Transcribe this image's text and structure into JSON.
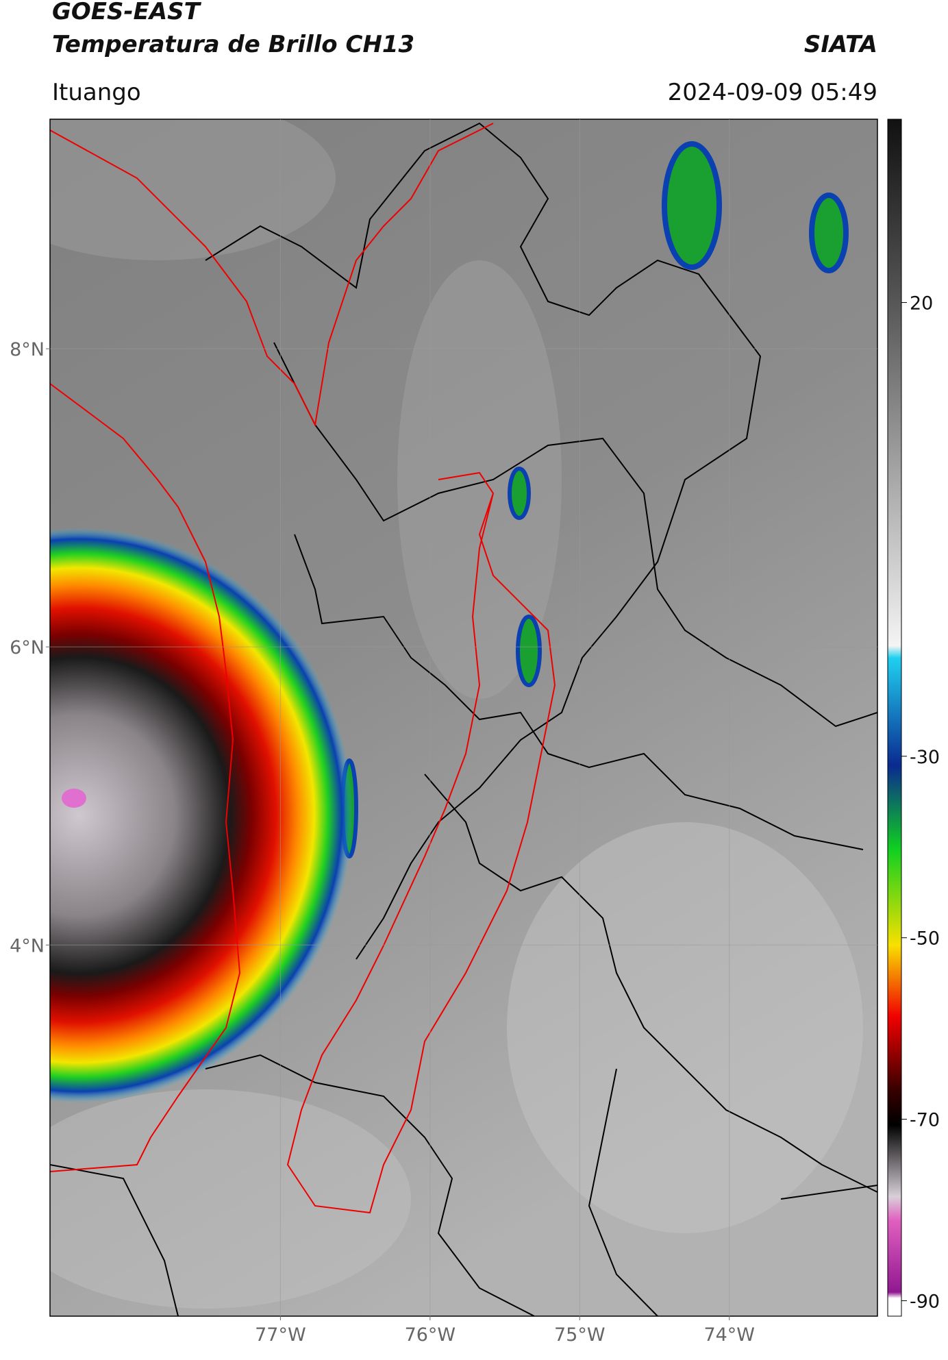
{
  "header": {
    "title": "GOES-EAST",
    "subtitle": "Temperatura de Brillo CH13",
    "source": "SIATA",
    "region": "Ituango",
    "datetime": "2024-09-09 05:49"
  },
  "map": {
    "xlim": [
      -78.54,
      -73.01
    ],
    "ylim": [
      1.51,
      9.54
    ],
    "xticks": [
      {
        "value": -77,
        "label": "77°W"
      },
      {
        "value": -76,
        "label": "76°W"
      },
      {
        "value": -75,
        "label": "75°W"
      },
      {
        "value": -74,
        "label": "74°W"
      }
    ],
    "yticks": [
      {
        "value": 4,
        "label": "4°N"
      },
      {
        "value": 6,
        "label": "6°N"
      },
      {
        "value": 8,
        "label": "8°N"
      }
    ]
  },
  "colorbar": {
    "lim": [
      -91.7,
      40.2
    ],
    "ticks": [
      20,
      -30,
      -50,
      -70,
      -90
    ]
  }
}
